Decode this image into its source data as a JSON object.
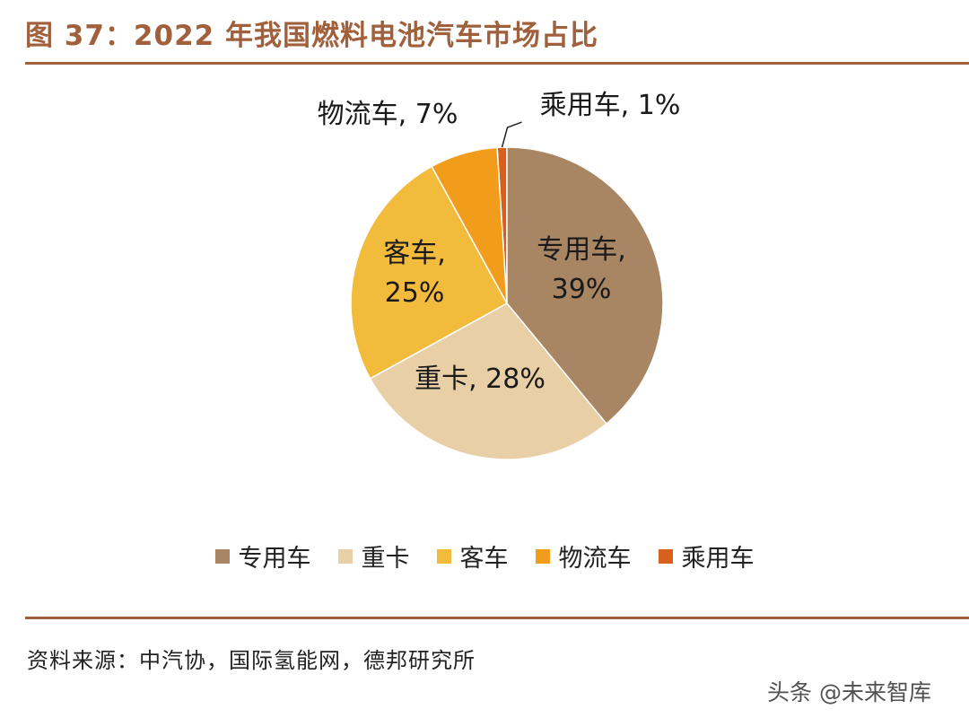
{
  "title": "图 37：2022 年我国燃料电池汽车市场占比",
  "source": "资料来源：中汽协，国际氢能网，德邦研究所",
  "watermark": "头条 @未来智库",
  "chart_data": {
    "type": "pie",
    "legend_position": "bottom",
    "slices": [
      {
        "name": "专用车",
        "value": 39,
        "label": "39%",
        "color": "#A88563"
      },
      {
        "name": "重卡",
        "value": 28,
        "label": "28%",
        "color": "#E8CFA6"
      },
      {
        "name": "客车",
        "value": 25,
        "label": "25%",
        "color": "#F2BB3C"
      },
      {
        "name": "物流车",
        "value": 7,
        "label": "7%",
        "color": "#F29C1B"
      },
      {
        "name": "乘用车",
        "value": 1,
        "label": "1%",
        "color": "#D9601C"
      }
    ]
  }
}
